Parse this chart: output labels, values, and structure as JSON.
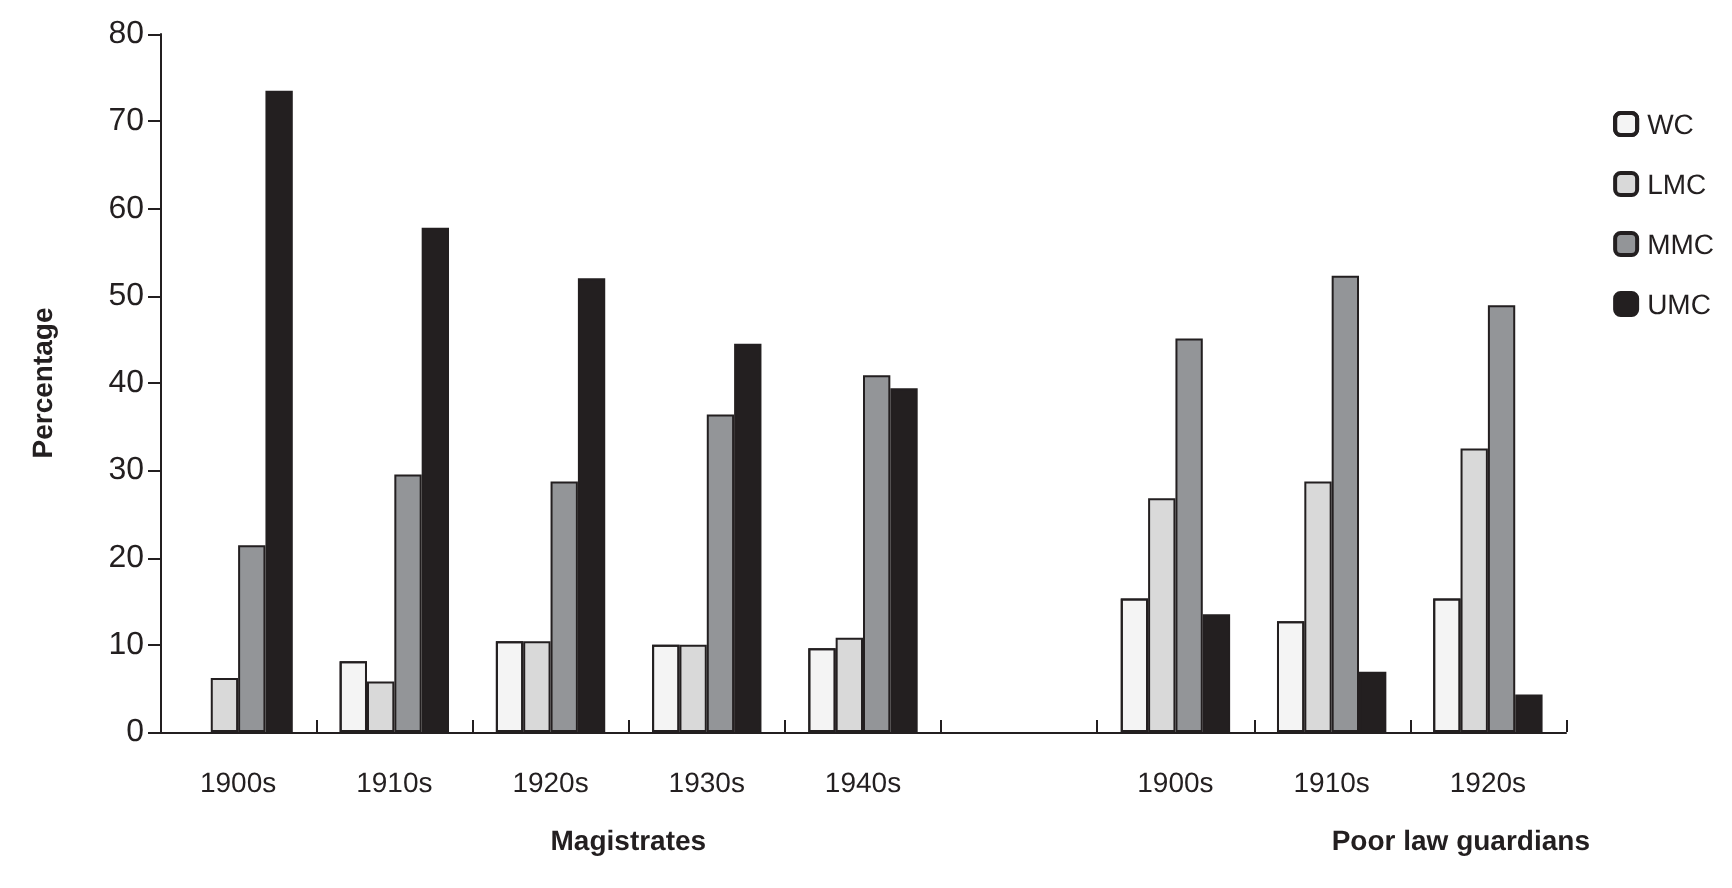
{
  "chart_data": {
    "type": "bar",
    "ylabel": "Percentage",
    "categories": [
      "1900s",
      "1910s",
      "1920s",
      "1930s",
      "1940s",
      null,
      "1900s",
      "1910s",
      "1920s"
    ],
    "series": [
      {
        "name": "WC",
        "color": "#f4f4f4",
        "values": [
          null,
          8.1,
          10.4,
          10.0,
          9.6,
          null,
          15.3,
          12.7,
          15.3
        ]
      },
      {
        "name": "LMC",
        "color": "#d9d9d9",
        "values": [
          6.2,
          5.8,
          10.4,
          10.0,
          10.8,
          null,
          26.8,
          28.7,
          32.5
        ]
      },
      {
        "name": "MMC",
        "color": "#939598",
        "values": [
          21.4,
          29.5,
          28.7,
          36.4,
          40.9,
          null,
          45.1,
          52.3,
          48.9
        ]
      },
      {
        "name": "UMC",
        "color": "#231f20",
        "values": [
          73.5,
          57.8,
          52.0,
          44.5,
          39.4,
          null,
          13.5,
          6.9,
          4.3
        ]
      }
    ],
    "ylim": [
      0,
      80
    ],
    "yticks": [
      0,
      10,
      20,
      30,
      40,
      50,
      60,
      70,
      80
    ],
    "annotations": [
      "Magistrates",
      "Poor law guardians"
    ],
    "grid": false,
    "legend": "right"
  }
}
